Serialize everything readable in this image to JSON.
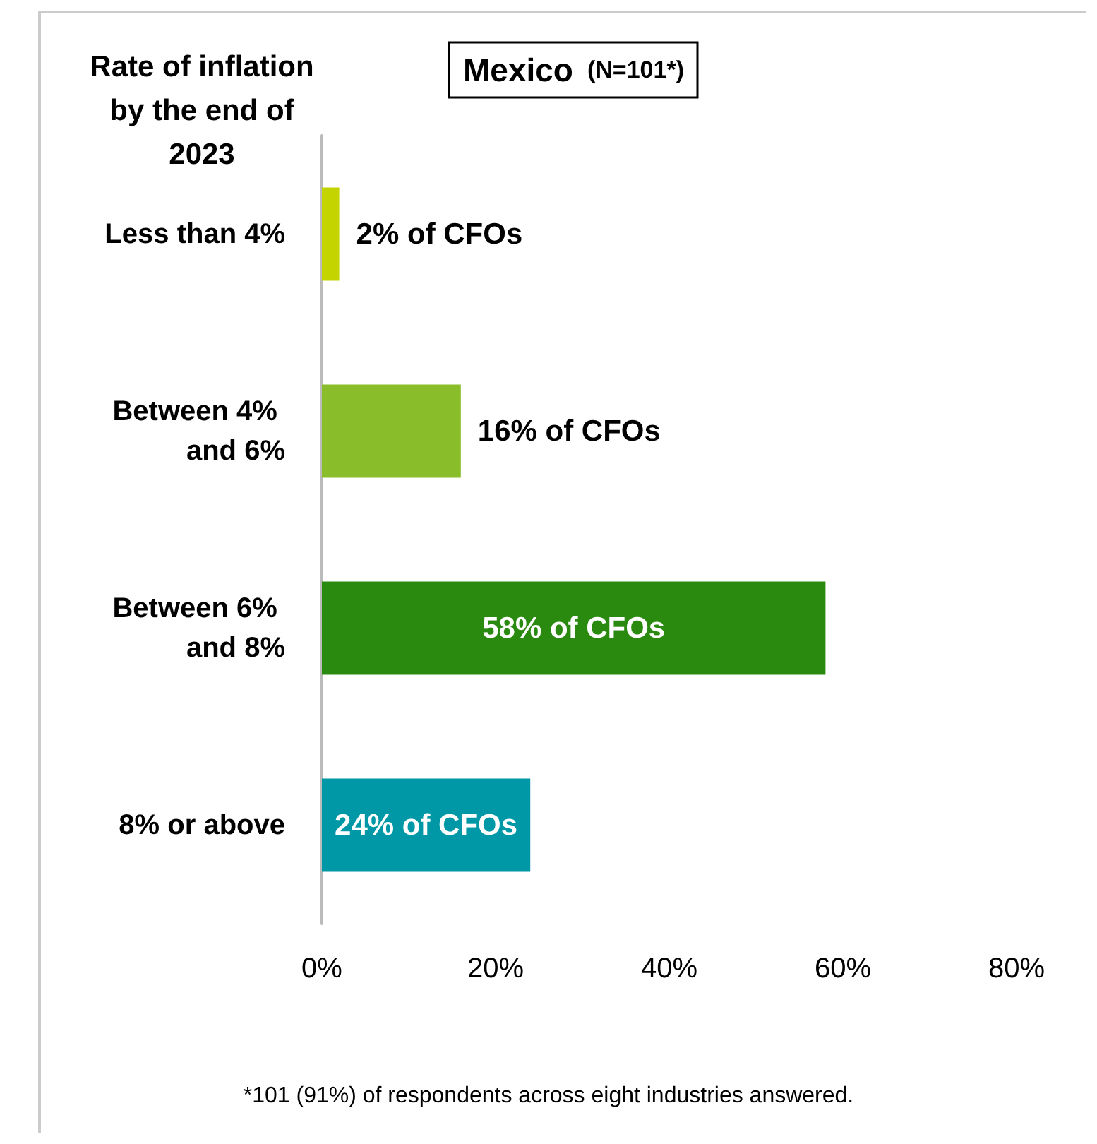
{
  "chart_data": {
    "type": "bar",
    "orientation": "horizontal",
    "title": "Mexico",
    "subtitle": "(N=101*)",
    "ylabel": "Rate of inflation by the end of 2023",
    "categories": [
      "Less than 4%",
      "Between 4% and 6%",
      "Between 6% and 8%",
      "8% or above"
    ],
    "values": [
      2,
      16,
      58,
      24
    ],
    "colors": [
      "#c3d400",
      "#8abd2a",
      "#2a8a10",
      "#0098a6"
    ],
    "value_labels": [
      "2% of CFOs",
      "16% of CFOs",
      "58% of CFOs",
      "24% of CFOs"
    ],
    "xlim": [
      0,
      80
    ],
    "xticks": [
      {
        "value": 0,
        "label": "0%"
      },
      {
        "value": 20,
        "label": "20%"
      },
      {
        "value": 40,
        "label": "40%"
      },
      {
        "value": 60,
        "label": "60%"
      },
      {
        "value": 80,
        "label": "80%"
      }
    ],
    "grid": false,
    "annotations": [
      "*101 (91%) of respondents across eight industries answered."
    ]
  }
}
